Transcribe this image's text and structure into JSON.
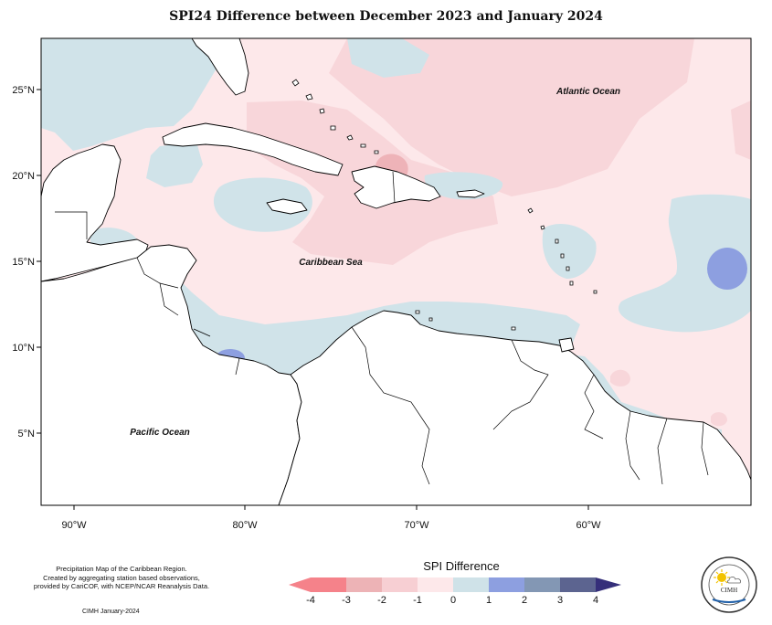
{
  "title": "SPI24 Difference between December 2023 and January 2024",
  "map": {
    "lat_ticks": [
      {
        "label": "25°N",
        "lat": 25
      },
      {
        "label": "20°N",
        "lat": 20
      },
      {
        "label": "15°N",
        "lat": 15
      },
      {
        "label": "10°N",
        "lat": 10
      },
      {
        "label": "5°N",
        "lat": 5
      }
    ],
    "lon_ticks": [
      {
        "label": "90°W",
        "lon": -90
      },
      {
        "label": "80°W",
        "lon": -80
      },
      {
        "label": "70°W",
        "lon": -70
      },
      {
        "label": "60°W",
        "lon": -60
      }
    ],
    "regions": {
      "atlantic": "Atlantic Ocean",
      "caribbean": "Caribbean Sea",
      "pacific": "Pacific Ocean"
    },
    "colors": {
      "m4": "#f5828a",
      "m3": "#edb3b6",
      "m2": "#f7cfd3",
      "m1": "#fde8ea",
      "p0": "#cfe2e8",
      "p1": "#8d9fe0",
      "p2": "#8397b4",
      "p3": "#5c6490",
      "p4": "#352f7a"
    }
  },
  "legend": {
    "title": "SPI Difference",
    "ticks": [
      "-4",
      "-3",
      "-2",
      "-1",
      "0",
      "1",
      "2",
      "3",
      "4"
    ]
  },
  "notes": {
    "line1": "Precipitation Map of the Caribbean Region.",
    "line2": "Created by aggregating station based observations,",
    "line3": "provided by CariCOF, with NCEP/NCAR Reanalysis Data.",
    "credit": "CIMH January-2024"
  },
  "logo": {
    "text": "CIMH"
  }
}
